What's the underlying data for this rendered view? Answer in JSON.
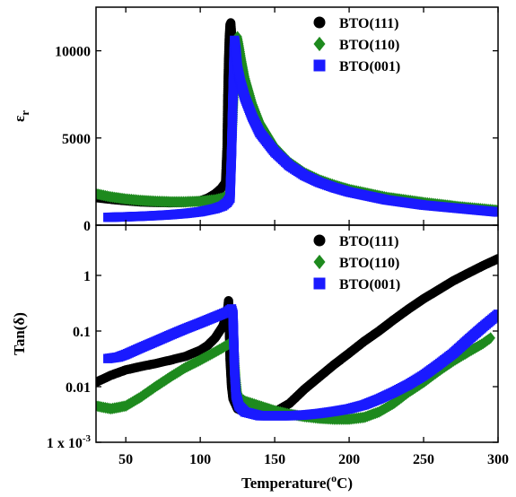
{
  "chart_data": [
    {
      "type": "scatter",
      "panel": "top",
      "xlabel": "",
      "ylabel": "ε",
      "ylabel_sub": "r",
      "xlim": [
        30,
        300
      ],
      "ylim": [
        0,
        12500
      ],
      "yticks": [
        0,
        5000,
        10000
      ],
      "ytick_labels": [
        "0",
        "5000",
        "10000"
      ],
      "xticks": [
        50,
        100,
        150,
        200,
        250,
        300
      ],
      "legend_position": "top-right",
      "series": [
        {
          "name": "BTO(111)",
          "marker": "circle",
          "color": "#000000",
          "points": [
            [
              30,
              1580
            ],
            [
              40,
              1480
            ],
            [
              50,
              1400
            ],
            [
              60,
              1330
            ],
            [
              70,
              1300
            ],
            [
              80,
              1290
            ],
            [
              90,
              1310
            ],
            [
              100,
              1400
            ],
            [
              105,
              1550
            ],
            [
              110,
              1800
            ],
            [
              114,
              2100
            ],
            [
              117,
              2450
            ],
            [
              118,
              4500
            ],
            [
              118.5,
              7500
            ],
            [
              119,
              9500
            ],
            [
              119.5,
              10800
            ],
            [
              120,
              11500
            ],
            [
              120.5,
              11600
            ],
            [
              121,
              11000
            ],
            [
              121.5,
              10200
            ],
            [
              122,
              9600
            ]
          ]
        },
        {
          "name": "BTO(110)",
          "marker": "diamond",
          "color": "#1e8a1e",
          "points": [
            [
              30,
              1800
            ],
            [
              40,
              1620
            ],
            [
              50,
              1500
            ],
            [
              60,
              1420
            ],
            [
              70,
              1370
            ],
            [
              80,
              1340
            ],
            [
              90,
              1340
            ],
            [
              100,
              1370
            ],
            [
              110,
              1460
            ],
            [
              115,
              1560
            ],
            [
              119,
              1700
            ],
            [
              120,
              2200
            ],
            [
              121,
              4000
            ],
            [
              122,
              5900
            ],
            [
              123,
              8000
            ],
            [
              124,
              9800
            ],
            [
              125,
              10800
            ],
            [
              126,
              10400
            ],
            [
              128,
              9400
            ],
            [
              130,
              8500
            ],
            [
              135,
              7000
            ],
            [
              140,
              5900
            ],
            [
              150,
              4500
            ],
            [
              160,
              3600
            ],
            [
              170,
              3000
            ],
            [
              180,
              2600
            ],
            [
              190,
              2300
            ],
            [
              200,
              2050
            ],
            [
              225,
              1600
            ],
            [
              250,
              1300
            ],
            [
              275,
              1050
            ],
            [
              300,
              850
            ]
          ]
        },
        {
          "name": "BTO(001)",
          "marker": "square",
          "color": "#1a1aff",
          "points": [
            [
              38,
              450
            ],
            [
              50,
              480
            ],
            [
              60,
              510
            ],
            [
              70,
              550
            ],
            [
              80,
              600
            ],
            [
              90,
              670
            ],
            [
              100,
              770
            ],
            [
              110,
              950
            ],
            [
              115,
              1100
            ],
            [
              118,
              1300
            ],
            [
              120,
              1550
            ],
            [
              121,
              4100
            ],
            [
              122,
              7600
            ],
            [
              122.5,
              9200
            ],
            [
              123,
              10600
            ],
            [
              124,
              10000
            ],
            [
              125,
              9000
            ],
            [
              127,
              8200
            ],
            [
              130,
              7300
            ],
            [
              135,
              6200
            ],
            [
              140,
              5300
            ],
            [
              150,
              4200
            ],
            [
              160,
              3400
            ],
            [
              170,
              2850
            ],
            [
              180,
              2450
            ],
            [
              190,
              2150
            ],
            [
              200,
              1900
            ],
            [
              225,
              1450
            ],
            [
              250,
              1150
            ],
            [
              275,
              950
            ],
            [
              300,
              750
            ]
          ]
        }
      ]
    },
    {
      "type": "scatter",
      "panel": "bottom",
      "xlabel": "Temperature(",
      "xlabel_sup": "o",
      "xlabel_end": "C)",
      "ylabel": "Tan(δ)",
      "yscale": "log",
      "xlim": [
        30,
        300
      ],
      "ylim": [
        0.001,
        8
      ],
      "yticks": [
        0.001,
        0.01,
        0.1,
        1
      ],
      "ytick_labels": [
        "1 x 10",
        "0.01",
        "0.1",
        "1"
      ],
      "ytick_first_sup": "-3",
      "xticks": [
        50,
        100,
        150,
        200,
        250,
        300
      ],
      "xtick_labels": [
        "50",
        "100",
        "150",
        "200",
        "250",
        "300"
      ],
      "legend_position": "top-right",
      "series": [
        {
          "name": "BTO(111)",
          "marker": "circle",
          "color": "#000000",
          "points": [
            [
              30,
              0.012
            ],
            [
              40,
              0.016
            ],
            [
              50,
              0.02
            ],
            [
              60,
              0.023
            ],
            [
              70,
              0.026
            ],
            [
              80,
              0.03
            ],
            [
              90,
              0.035
            ],
            [
              100,
              0.045
            ],
            [
              105,
              0.055
            ],
            [
              110,
              0.075
            ],
            [
              115,
              0.12
            ],
            [
              118,
              0.2
            ],
            [
              119,
              0.35
            ],
            [
              119.5,
              0.12
            ],
            [
              120,
              0.03
            ],
            [
              121,
              0.01
            ],
            [
              122,
              0.006
            ],
            [
              125,
              0.004
            ],
            [
              130,
              0.0035
            ],
            [
              140,
              0.0032
            ],
            [
              150,
              0.0035
            ],
            [
              160,
              0.005
            ],
            [
              170,
              0.009
            ],
            [
              180,
              0.015
            ],
            [
              190,
              0.025
            ],
            [
              200,
              0.04
            ],
            [
              210,
              0.065
            ],
            [
              220,
              0.1
            ],
            [
              230,
              0.16
            ],
            [
              240,
              0.25
            ],
            [
              250,
              0.38
            ],
            [
              260,
              0.55
            ],
            [
              270,
              0.8
            ],
            [
              280,
              1.1
            ],
            [
              290,
              1.5
            ],
            [
              300,
              2.0
            ]
          ]
        },
        {
          "name": "BTO(110)",
          "marker": "diamond",
          "color": "#1e8a1e",
          "points": [
            [
              30,
              0.0045
            ],
            [
              40,
              0.004
            ],
            [
              50,
              0.0045
            ],
            [
              60,
              0.0065
            ],
            [
              70,
              0.01
            ],
            [
              80,
              0.015
            ],
            [
              90,
              0.022
            ],
            [
              100,
              0.03
            ],
            [
              110,
              0.042
            ],
            [
              115,
              0.05
            ],
            [
              120,
              0.06
            ],
            [
              122,
              0.065
            ],
            [
              123,
              0.04
            ],
            [
              124,
              0.015
            ],
            [
              125,
              0.008
            ],
            [
              126,
              0.0065
            ],
            [
              130,
              0.0055
            ],
            [
              140,
              0.0045
            ],
            [
              150,
              0.0037
            ],
            [
              160,
              0.0032
            ],
            [
              170,
              0.0029
            ],
            [
              180,
              0.0027
            ],
            [
              190,
              0.0026
            ],
            [
              200,
              0.0026
            ],
            [
              210,
              0.0028
            ],
            [
              220,
              0.0035
            ],
            [
              230,
              0.005
            ],
            [
              240,
              0.008
            ],
            [
              250,
              0.012
            ],
            [
              260,
              0.019
            ],
            [
              270,
              0.029
            ],
            [
              280,
              0.042
            ],
            [
              290,
              0.06
            ],
            [
              295,
              0.075
            ]
          ]
        },
        {
          "name": "BTO(001)",
          "marker": "square",
          "color": "#1a1aff",
          "points": [
            [
              38,
              0.032
            ],
            [
              45,
              0.034
            ],
            [
              50,
              0.038
            ],
            [
              60,
              0.05
            ],
            [
              70,
              0.065
            ],
            [
              80,
              0.085
            ],
            [
              90,
              0.11
            ],
            [
              100,
              0.14
            ],
            [
              110,
              0.18
            ],
            [
              118,
              0.22
            ],
            [
              120,
              0.24
            ],
            [
              121,
              0.25
            ],
            [
              122,
              0.2
            ],
            [
              123,
              0.02
            ],
            [
              124,
              0.007
            ],
            [
              126,
              0.0045
            ],
            [
              130,
              0.0035
            ],
            [
              140,
              0.003
            ],
            [
              150,
              0.003
            ],
            [
              160,
              0.003
            ],
            [
              170,
              0.0031
            ],
            [
              180,
              0.0033
            ],
            [
              190,
              0.0036
            ],
            [
              200,
              0.004
            ],
            [
              210,
              0.0047
            ],
            [
              220,
              0.006
            ],
            [
              230,
              0.008
            ],
            [
              240,
              0.011
            ],
            [
              250,
              0.016
            ],
            [
              260,
              0.025
            ],
            [
              270,
              0.04
            ],
            [
              280,
              0.07
            ],
            [
              290,
              0.12
            ],
            [
              300,
              0.2
            ]
          ]
        }
      ]
    }
  ]
}
